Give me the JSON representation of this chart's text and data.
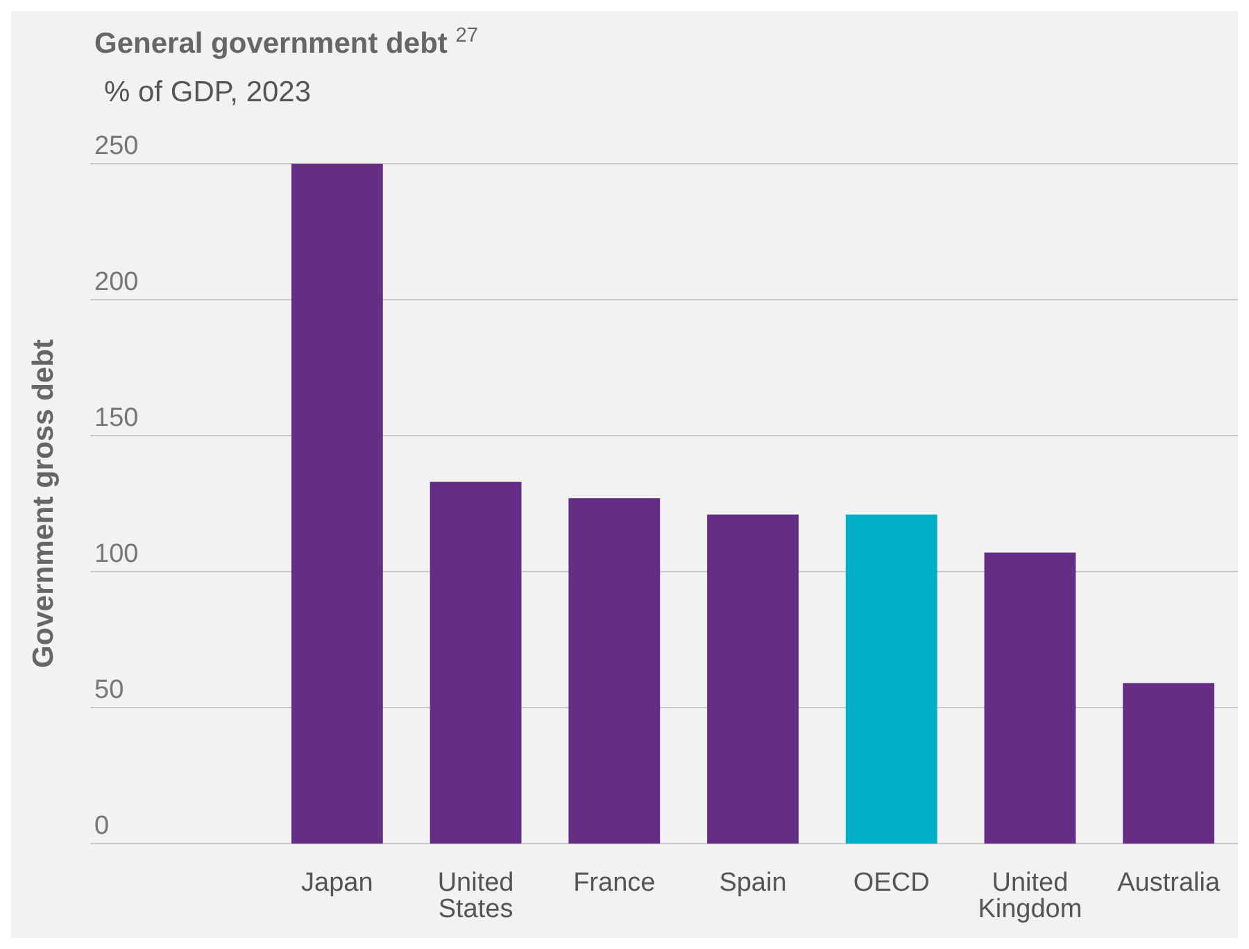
{
  "chart_data": {
    "type": "bar",
    "title": "General government debt $^{27}$",
    "subtitle": "% of GDP, 2023",
    "ylabel": "Government gross debt",
    "categories": [
      "Japan",
      "United States",
      "France",
      "Spain",
      "OECD",
      "United Kingdom",
      "Australia"
    ],
    "values": [
      250,
      133,
      127,
      121,
      121,
      107,
      59
    ],
    "colors": [
      "#652d84",
      "#652d84",
      "#652d84",
      "#652d84",
      "#00aec7",
      "#652d84",
      "#652d84"
    ],
    "ylim": [
      0,
      250
    ],
    "yticks": [
      0,
      50,
      100,
      150,
      200,
      250
    ],
    "grid": "y"
  }
}
